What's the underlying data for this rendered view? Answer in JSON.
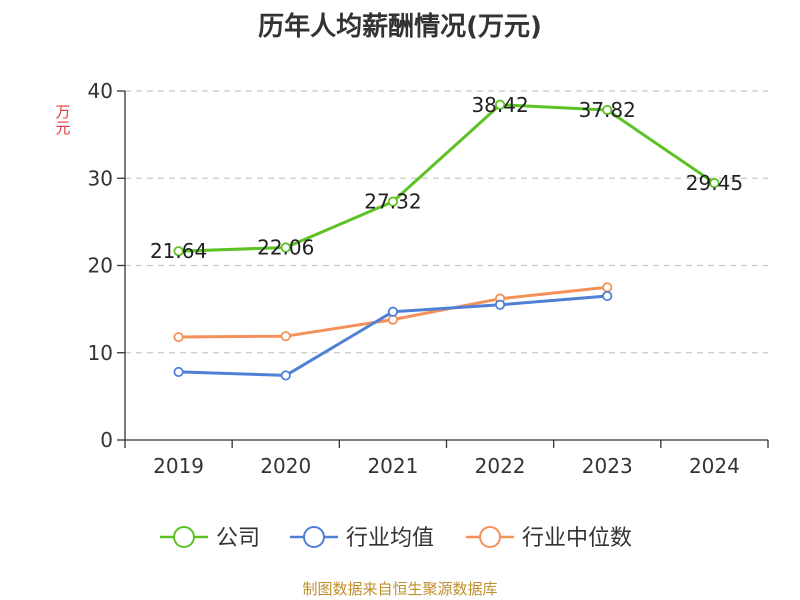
{
  "chart_data": {
    "type": "line",
    "title": "历年人均薪酬情况(万元)",
    "xlabel": "",
    "ylabel": "万元",
    "categories": [
      "2019",
      "2020",
      "2021",
      "2022",
      "2023",
      "2024"
    ],
    "ylim": [
      0,
      40
    ],
    "yticks": [
      0,
      10,
      20,
      30,
      40
    ],
    "grid": true,
    "legend_position": "bottom",
    "series": [
      {
        "name": "公司",
        "color": "#5cc226",
        "values": [
          21.64,
          22.06,
          27.32,
          38.42,
          37.82,
          29.45
        ],
        "labels": [
          "21.64",
          "22.06",
          "27.32",
          "38.42",
          "37.82",
          "29.45"
        ]
      },
      {
        "name": "行业均值",
        "color": "#4f80d6",
        "values": [
          7.8,
          7.4,
          14.7,
          15.5,
          16.5,
          null
        ],
        "labels": []
      },
      {
        "name": "行业中位数",
        "color": "#f4905a",
        "values": [
          11.8,
          11.9,
          13.8,
          16.2,
          17.5,
          null
        ],
        "labels": []
      }
    ]
  },
  "footer": {
    "source": "制图数据来自恒生聚源数据库"
  }
}
